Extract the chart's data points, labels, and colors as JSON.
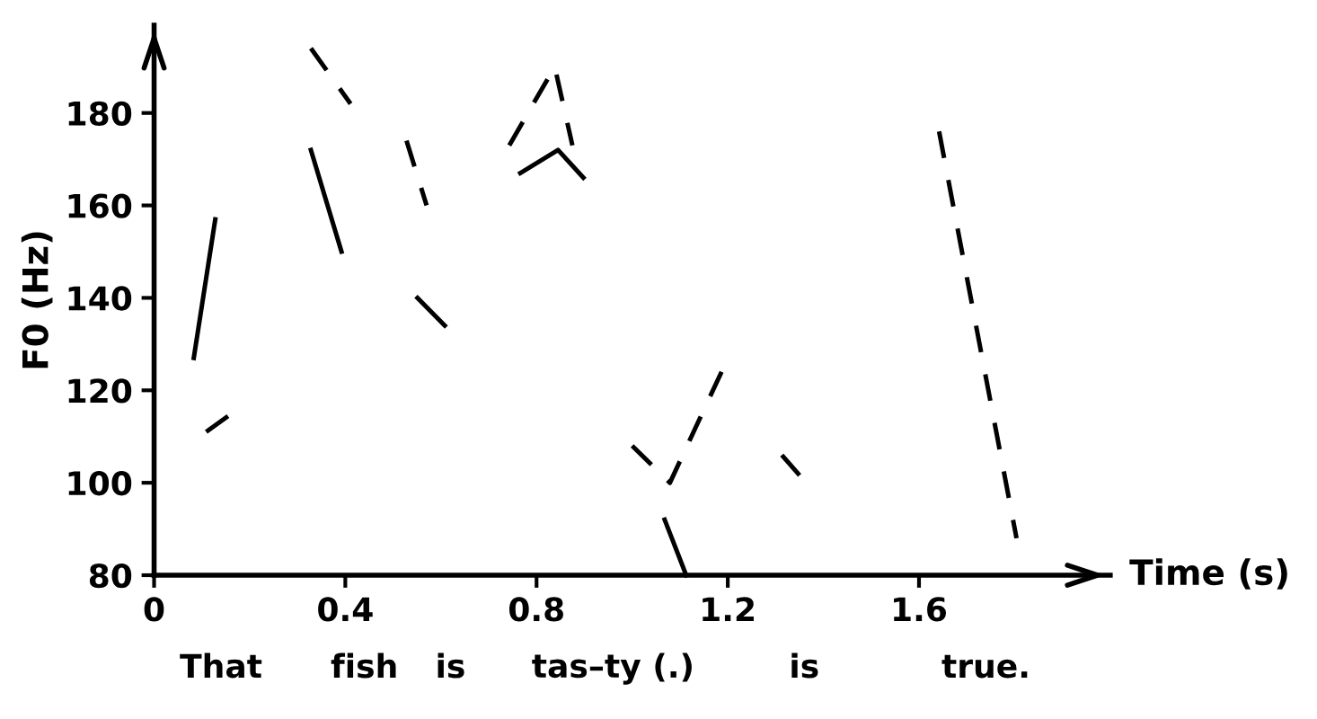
{
  "chart_data": {
    "type": "line",
    "xlabel": "Time (s)",
    "ylabel": "F0 (Hz)",
    "series": [
      {
        "color": "#000000",
        "line_style": "solid",
        "x": [
          0.083,
          0.128,
          null,
          0.328,
          0.392,
          null,
          0.551,
          0.608,
          null,
          0.766,
          0.845,
          0.898,
          null,
          1.068,
          1.113
        ],
        "values": [
          127,
          157,
          null,
          172,
          150,
          null,
          140,
          134,
          null,
          167,
          172,
          166,
          null,
          92,
          80
        ]
      },
      {
        "color": "#000000",
        "line_style": "dashed",
        "x": [
          0.109,
          0.189,
          null,
          0.328,
          0.411,
          null,
          0.528,
          0.57,
          null,
          0.743,
          0.838,
          0.875,
          null,
          1.0,
          1.079,
          1.196,
          null,
          1.313,
          1.381,
          null,
          1.642,
          1.804
        ],
        "values": [
          111,
          117,
          null,
          194,
          182,
          null,
          174,
          160,
          null,
          173,
          190,
          173,
          null,
          108,
          100,
          126,
          null,
          106,
          98,
          null,
          176,
          88
        ]
      }
    ],
    "xlim": [
      0,
      2.0
    ],
    "xticks": [
      0,
      0.4,
      0.8,
      1.2,
      1.6
    ],
    "ylim": [
      80,
      199
    ],
    "yticks": [
      80,
      100,
      120,
      140,
      160,
      180
    ],
    "grid": false,
    "legend": false,
    "annotations": [
      "That",
      "fish",
      "is",
      "tas–ty (.)",
      "is",
      "true."
    ]
  }
}
